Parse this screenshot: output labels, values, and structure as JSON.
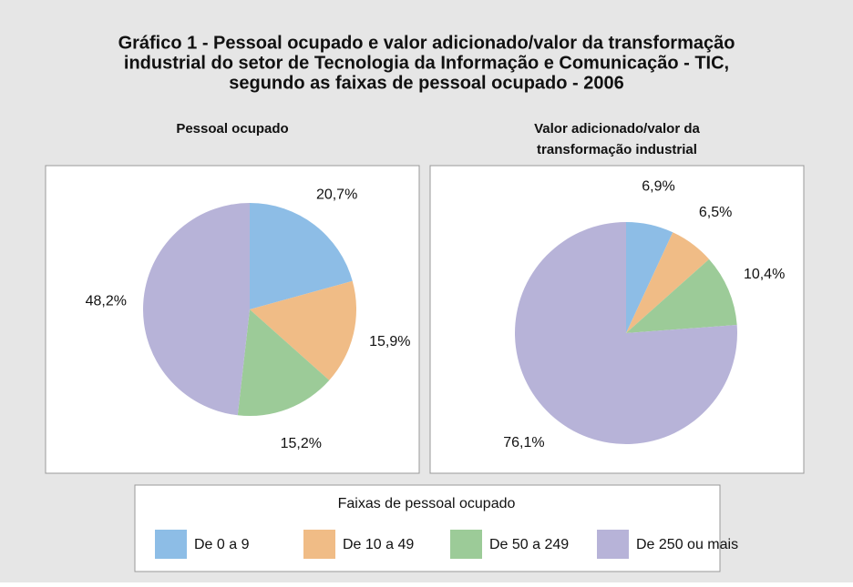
{
  "title": [
    "Gráfico 1 - Pessoal ocupado e  valor adicionado/valor da transformação",
    "industrial do setor de Tecnologia da Informação e Comunicação - TIC,",
    "segundo as faixas de pessoal ocupado - 2006"
  ],
  "legend": {
    "title": "Faixas de pessoal ocupado",
    "categories": [
      "De 0 a 9",
      "De 10 a 49",
      "De 50 a 249",
      "De 250 ou mais"
    ],
    "colors": [
      "#8dbde6",
      "#f0bc86",
      "#9ccb98",
      "#b7b3d8"
    ]
  },
  "chart_data": [
    {
      "type": "pie",
      "title": [
        "Pessoal ocupado"
      ],
      "values": [
        20.7,
        15.9,
        15.2,
        48.2
      ],
      "value_labels": [
        "20,7%",
        "15,9%",
        "15,2%",
        "48,2%"
      ]
    },
    {
      "type": "pie",
      "title": [
        "Valor adicionado/valor da",
        "transformação industrial"
      ],
      "values": [
        6.9,
        6.5,
        10.4,
        76.1
      ],
      "value_labels": [
        "6,9%",
        "6,5%",
        "10,4%",
        "76,1%"
      ]
    }
  ]
}
